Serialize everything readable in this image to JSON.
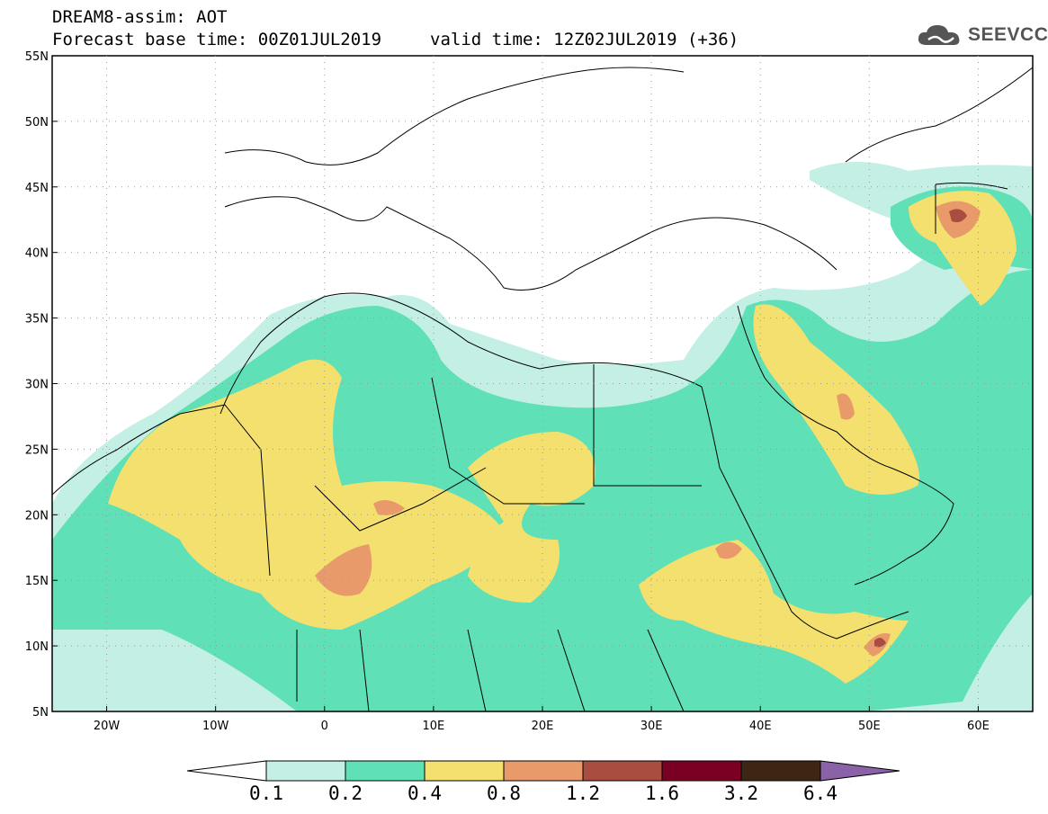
{
  "header": {
    "title_line1": "DREAM8-assim: AOT",
    "title_line2": "Forecast base time: 00Z01JUL2019",
    "valid_time": "valid time: 12Z02JUL2019 (+36)"
  },
  "logo": {
    "text": "SEEVCCC",
    "icon": "cloud-icon"
  },
  "map": {
    "lon_range": [
      -25,
      65
    ],
    "lat_range": [
      5,
      55
    ],
    "lat_ticks": [
      "55N",
      "50N",
      "45N",
      "40N",
      "35N",
      "30N",
      "25N",
      "20N",
      "15N",
      "10N",
      "5N"
    ],
    "lon_ticks": [
      "20W",
      "10W",
      "0",
      "10E",
      "20E",
      "30E",
      "40E",
      "50E",
      "60E"
    ]
  },
  "colorbar": {
    "labels": [
      "0.1",
      "0.2",
      "0.4",
      "0.8",
      "1.2",
      "1.6",
      "3.2",
      "6.4"
    ],
    "colors": [
      "#ffffff",
      "#c3efe5",
      "#5fe0b6",
      "#f3e06e",
      "#e99a6a",
      "#a84d3f",
      "#7a0023",
      "#3d2614",
      "#8a62a8"
    ]
  },
  "legend_colors": {
    "c1": "#c3efe5",
    "c2": "#5fe0b6",
    "c3": "#f3e06e",
    "c4": "#e99a6a",
    "c5": "#a84d3f"
  }
}
